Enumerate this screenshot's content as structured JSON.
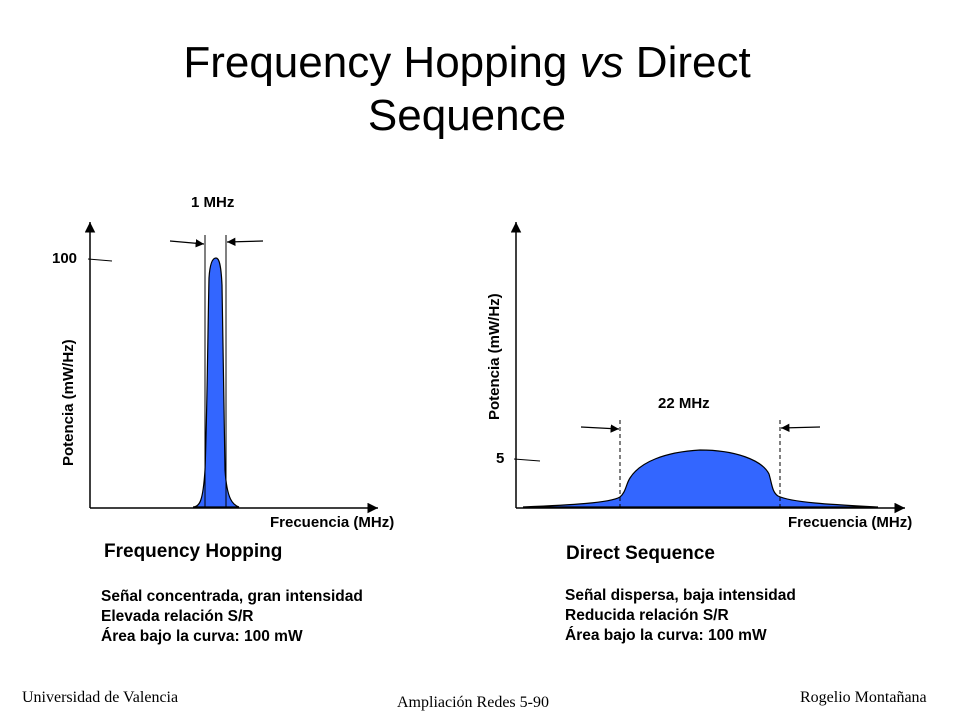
{
  "slide": {
    "title_part1": "Frequency Hopping ",
    "title_italic": "vs",
    "title_part2": " Direct",
    "title_line2": "Sequence"
  },
  "left_panel": {
    "bandwidth_label": "1 MHz",
    "y_tick": "100",
    "y_axis_label": "Potencia (mW/Hz)",
    "x_axis_label": "Frecuencia (MHz)",
    "heading": "Frequency Hopping",
    "description": [
      "Señal concentrada, gran intensidad",
      "Elevada relación S/R",
      "Área bajo la curva: 100 mW"
    ],
    "fill_color": "#3366ff"
  },
  "right_panel": {
    "bandwidth_label": "22 MHz",
    "y_tick": "5",
    "y_axis_label": "Potencia (mW/Hz)",
    "x_axis_label": "Frecuencia (MHz)",
    "heading": "Direct Sequence",
    "description": [
      "Señal dispersa, baja intensidad",
      "Reducida relación S/R",
      "Área bajo la curva: 100 mW"
    ],
    "fill_color": "#3366ff"
  },
  "footer": {
    "left": "Universidad de Valencia",
    "center": "Ampliación Redes 5-90",
    "right": "Rogelio Montañana"
  }
}
